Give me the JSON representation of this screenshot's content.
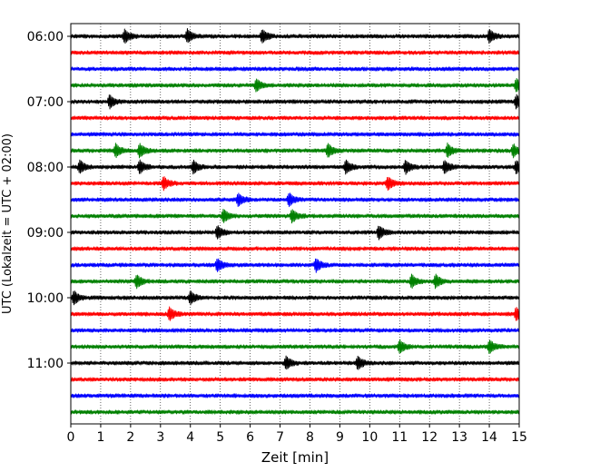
{
  "chart_data": {
    "type": "line",
    "title": "",
    "xlabel": "Zeit  [min]",
    "ylabel": "UTC (Lokalzeit = UTC + 02:00)",
    "xlim": [
      0,
      15
    ],
    "x_ticks": [
      "0",
      "1",
      "2",
      "3",
      "4",
      "5",
      "6",
      "7",
      "8",
      "9",
      "10",
      "11",
      "12",
      "13",
      "14",
      "15"
    ],
    "y_ticks": [
      "06:00",
      "07:00",
      "08:00",
      "09:00",
      "10:00",
      "11:00"
    ],
    "grid": "vertical dotted",
    "series": [
      {
        "start": "06:00",
        "color": "#000000"
      },
      {
        "start": "06:15",
        "color": "#ff0000"
      },
      {
        "start": "06:30",
        "color": "#0000ff"
      },
      {
        "start": "06:45",
        "color": "#008000"
      },
      {
        "start": "07:00",
        "color": "#000000"
      },
      {
        "start": "07:15",
        "color": "#ff0000"
      },
      {
        "start": "07:30",
        "color": "#0000ff"
      },
      {
        "start": "07:45",
        "color": "#008000"
      },
      {
        "start": "08:00",
        "color": "#000000"
      },
      {
        "start": "08:15",
        "color": "#ff0000"
      },
      {
        "start": "08:30",
        "color": "#0000ff"
      },
      {
        "start": "08:45",
        "color": "#008000"
      },
      {
        "start": "09:00",
        "color": "#000000"
      },
      {
        "start": "09:15",
        "color": "#ff0000"
      },
      {
        "start": "09:30",
        "color": "#0000ff"
      },
      {
        "start": "09:45",
        "color": "#008000"
      },
      {
        "start": "10:00",
        "color": "#000000"
      },
      {
        "start": "10:15",
        "color": "#ff0000"
      },
      {
        "start": "10:30",
        "color": "#0000ff"
      },
      {
        "start": "10:45",
        "color": "#008000"
      },
      {
        "start": "11:00",
        "color": "#000000"
      },
      {
        "start": "11:15",
        "color": "#ff0000"
      },
      {
        "start": "11:30",
        "color": "#0000ff"
      },
      {
        "start": "11:45",
        "color": "#008000"
      }
    ],
    "events": [
      {
        "start": "06:00",
        "x_min": [
          1.8,
          3.9,
          6.4,
          14.0
        ]
      },
      {
        "start": "06:45",
        "x_min": [
          6.2,
          14.9
        ]
      },
      {
        "start": "07:00",
        "x_min": [
          1.3,
          14.9
        ]
      },
      {
        "start": "07:45",
        "x_min": [
          1.5,
          2.3,
          8.6,
          12.6,
          14.8
        ]
      },
      {
        "start": "08:00",
        "x_min": [
          0.3,
          2.3,
          4.1,
          9.2,
          11.2,
          12.5,
          14.9
        ]
      },
      {
        "start": "08:15",
        "x_min": [
          3.1,
          10.6
        ]
      },
      {
        "start": "08:30",
        "x_min": [
          5.6,
          7.3
        ]
      },
      {
        "start": "08:45",
        "x_min": [
          5.1,
          7.4
        ]
      },
      {
        "start": "09:00",
        "x_min": [
          4.9,
          10.3
        ]
      },
      {
        "start": "09:30",
        "x_min": [
          4.9,
          8.2
        ]
      },
      {
        "start": "09:45",
        "x_min": [
          2.2,
          11.4,
          12.2
        ]
      },
      {
        "start": "10:00",
        "x_min": [
          0.1,
          4.0
        ]
      },
      {
        "start": "10:15",
        "x_min": [
          3.3,
          14.9
        ]
      },
      {
        "start": "10:45",
        "x_min": [
          11.0,
          14.0
        ]
      },
      {
        "start": "11:00",
        "x_min": [
          7.2,
          9.6
        ]
      }
    ]
  }
}
